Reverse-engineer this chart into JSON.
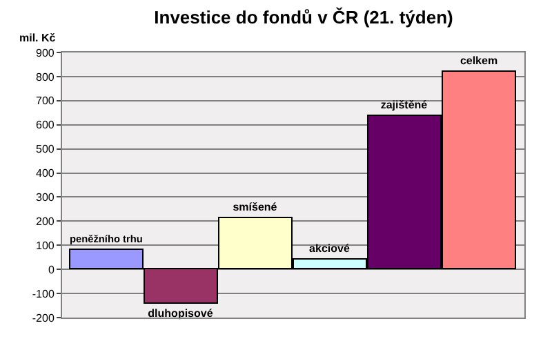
{
  "chart_data": {
    "type": "bar",
    "title": "Investice do fondů v ČR (21. týden)",
    "ylabel": "mil. Kč",
    "categories": [
      "peněžního trhu",
      "dluhopisové",
      "smíšené",
      "akciové",
      "zajištěné",
      "celkem"
    ],
    "values": [
      80,
      -140,
      210,
      40,
      635,
      820
    ],
    "colors": [
      "#9999ff",
      "#993366",
      "#ffffcc",
      "#ccffff",
      "#660066",
      "#ff8080"
    ],
    "ylim": [
      -200,
      900
    ],
    "yticks": [
      -200,
      -100,
      0,
      100,
      200,
      300,
      400,
      500,
      600,
      700,
      800,
      900
    ],
    "grid": "y",
    "tick_labels": "y"
  }
}
